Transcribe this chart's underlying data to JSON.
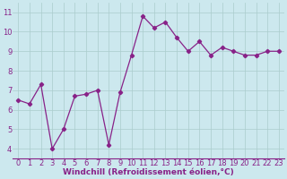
{
  "x": [
    0,
    1,
    2,
    3,
    4,
    5,
    6,
    7,
    8,
    9,
    10,
    11,
    12,
    13,
    14,
    15,
    16,
    17,
    18,
    19,
    20,
    21,
    22,
    23
  ],
  "y": [
    6.5,
    6.3,
    7.3,
    4.0,
    5.0,
    6.7,
    6.8,
    7.0,
    4.2,
    6.9,
    8.8,
    10.8,
    10.2,
    10.5,
    9.7,
    9.0,
    9.5,
    8.8,
    9.2,
    9.0,
    8.8,
    8.8,
    9.0,
    9.0
  ],
  "line_color": "#882288",
  "marker": "D",
  "marker_size": 2.2,
  "bg_color": "#cce8ee",
  "grid_color": "#aacccc",
  "xlabel": "Windchill (Refroidissement éolien,°C)",
  "xlabel_color": "#882288",
  "tick_color": "#882288",
  "xlim": [
    -0.5,
    23.5
  ],
  "ylim": [
    3.5,
    11.5
  ],
  "yticks": [
    4,
    5,
    6,
    7,
    8,
    9,
    10,
    11
  ],
  "xticks": [
    0,
    1,
    2,
    3,
    4,
    5,
    6,
    7,
    8,
    9,
    10,
    11,
    12,
    13,
    14,
    15,
    16,
    17,
    18,
    19,
    20,
    21,
    22,
    23
  ],
  "tick_fontsize": 6,
  "xlabel_fontsize": 6.5,
  "linewidth": 0.9
}
